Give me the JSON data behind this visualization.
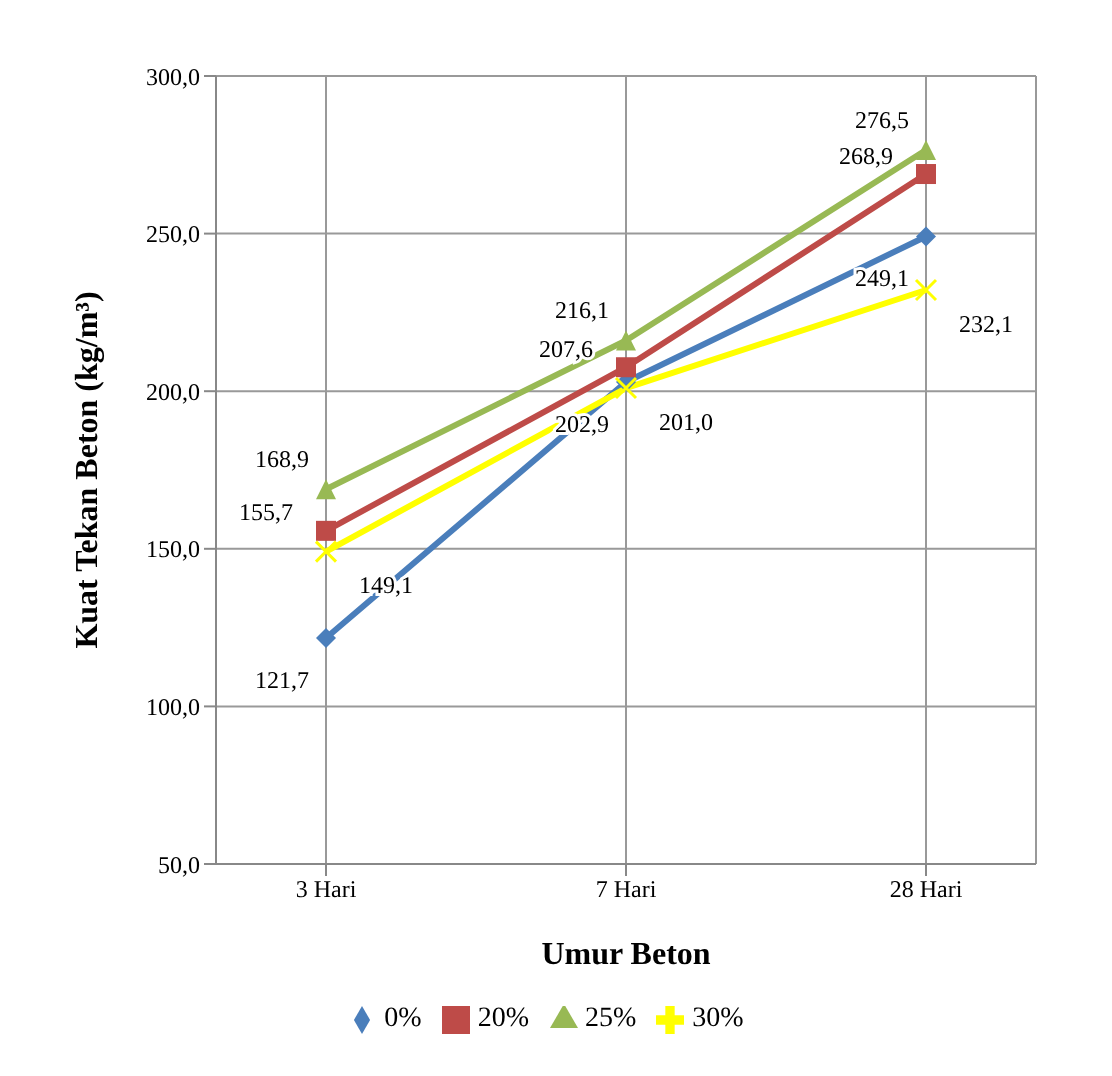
{
  "chart_data": {
    "type": "line",
    "xlabel": "Umur Beton",
    "ylabel": "Kuat Tekan Beton (kg/m³)",
    "categories": [
      "3 Hari",
      "7 Hari",
      "28 Hari"
    ],
    "series": [
      {
        "name": "0%",
        "color": "#4a7ebb",
        "marker": "diamond",
        "values": [
          121.7,
          202.9,
          249.1
        ],
        "value_labels": [
          "121,7",
          "202,9",
          "249,1"
        ]
      },
      {
        "name": "20%",
        "color": "#be4b48",
        "marker": "square",
        "values": [
          155.7,
          207.6,
          268.9
        ],
        "value_labels": [
          "155,7",
          "207,6",
          "268,9"
        ]
      },
      {
        "name": "25%",
        "color": "#98b954",
        "marker": "triangle",
        "values": [
          168.9,
          216.1,
          276.5
        ],
        "value_labels": [
          "168,9",
          "216,1",
          "276,5"
        ]
      },
      {
        "name": "30%",
        "color": "#ffff00",
        "marker": "cross",
        "values": [
          149.1,
          201.0,
          232.1
        ],
        "value_labels": [
          "149,1",
          "201,0",
          "232,1"
        ]
      }
    ],
    "ylim": [
      50,
      300
    ],
    "yticks": [
      {
        "value": 50,
        "label": "50,0"
      },
      {
        "value": 100,
        "label": "100,0"
      },
      {
        "value": 150,
        "label": "150,0"
      },
      {
        "value": 200,
        "label": "200,0"
      },
      {
        "value": 250,
        "label": "250,0"
      },
      {
        "value": 300,
        "label": "300,0"
      }
    ],
    "grid": true,
    "legend": "bottom"
  }
}
